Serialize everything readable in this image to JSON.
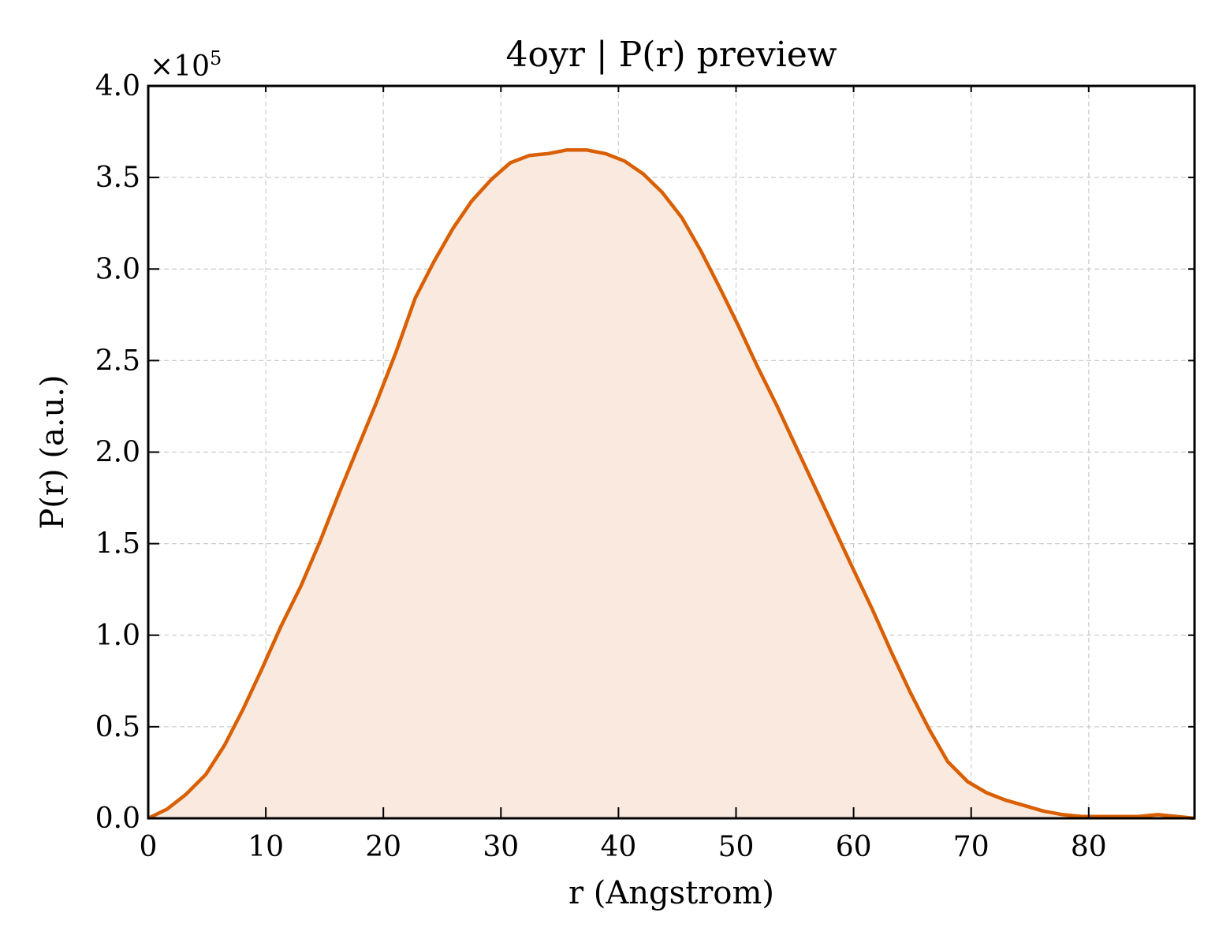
{
  "chart_data": {
    "type": "area",
    "title": "4oyr | P(r) preview",
    "xlabel": "r (Angstrom)",
    "ylabel": "P(r) (a.u.)",
    "y_scale_label": "×10",
    "y_scale_exponent": "5",
    "xlim": [
      0,
      89
    ],
    "ylim": [
      0,
      4.0
    ],
    "x_ticks": [
      0,
      10,
      20,
      30,
      40,
      50,
      60,
      70,
      80
    ],
    "x_tick_labels": [
      "0",
      "10",
      "20",
      "30",
      "40",
      "50",
      "60",
      "70",
      "80"
    ],
    "y_ticks": [
      0,
      0.5,
      1.0,
      1.5,
      2.0,
      2.5,
      3.0,
      3.5,
      4.0
    ],
    "y_tick_labels": [
      "0.0",
      "0.5",
      "1.0",
      "1.5",
      "2.0",
      "2.5",
      "3.0",
      "3.5",
      "4.0"
    ],
    "grid": true,
    "line_color": "#d95f02",
    "fill_color": "#f9e9de",
    "series": [
      {
        "x": [
          0,
          1.6,
          3.2,
          4.9,
          6.5,
          8.1,
          9.7,
          11.3,
          13.0,
          14.6,
          16.2,
          17.8,
          19.4,
          21.1,
          22.7,
          24.3,
          25.9,
          27.5,
          29.2,
          30.8,
          32.4,
          34.0,
          35.6,
          37.3,
          38.9,
          40.5,
          42.1,
          43.7,
          45.4,
          47.0,
          48.6,
          50.2,
          51.8,
          53.5,
          55.1,
          56.7,
          58.3,
          59.9,
          61.6,
          63.2,
          64.8,
          66.4,
          68.0,
          69.7,
          71.3,
          72.9,
          74.5,
          76.1,
          77.8,
          79.4,
          81.0,
          82.6,
          84.2,
          85.9,
          87.5,
          89.0
        ],
        "values": [
          0.0,
          0.05,
          0.13,
          0.24,
          0.4,
          0.6,
          0.82,
          1.05,
          1.27,
          1.51,
          1.77,
          2.02,
          2.27,
          2.55,
          2.84,
          3.04,
          3.22,
          3.37,
          3.49,
          3.58,
          3.62,
          3.63,
          3.65,
          3.65,
          3.63,
          3.59,
          3.52,
          3.42,
          3.28,
          3.1,
          2.9,
          2.69,
          2.47,
          2.25,
          2.03,
          1.81,
          1.59,
          1.37,
          1.14,
          0.91,
          0.69,
          0.49,
          0.31,
          0.2,
          0.14,
          0.1,
          0.07,
          0.04,
          0.02,
          0.01,
          0.01,
          0.01,
          0.01,
          0.02,
          0.01,
          0.0
        ]
      }
    ]
  }
}
